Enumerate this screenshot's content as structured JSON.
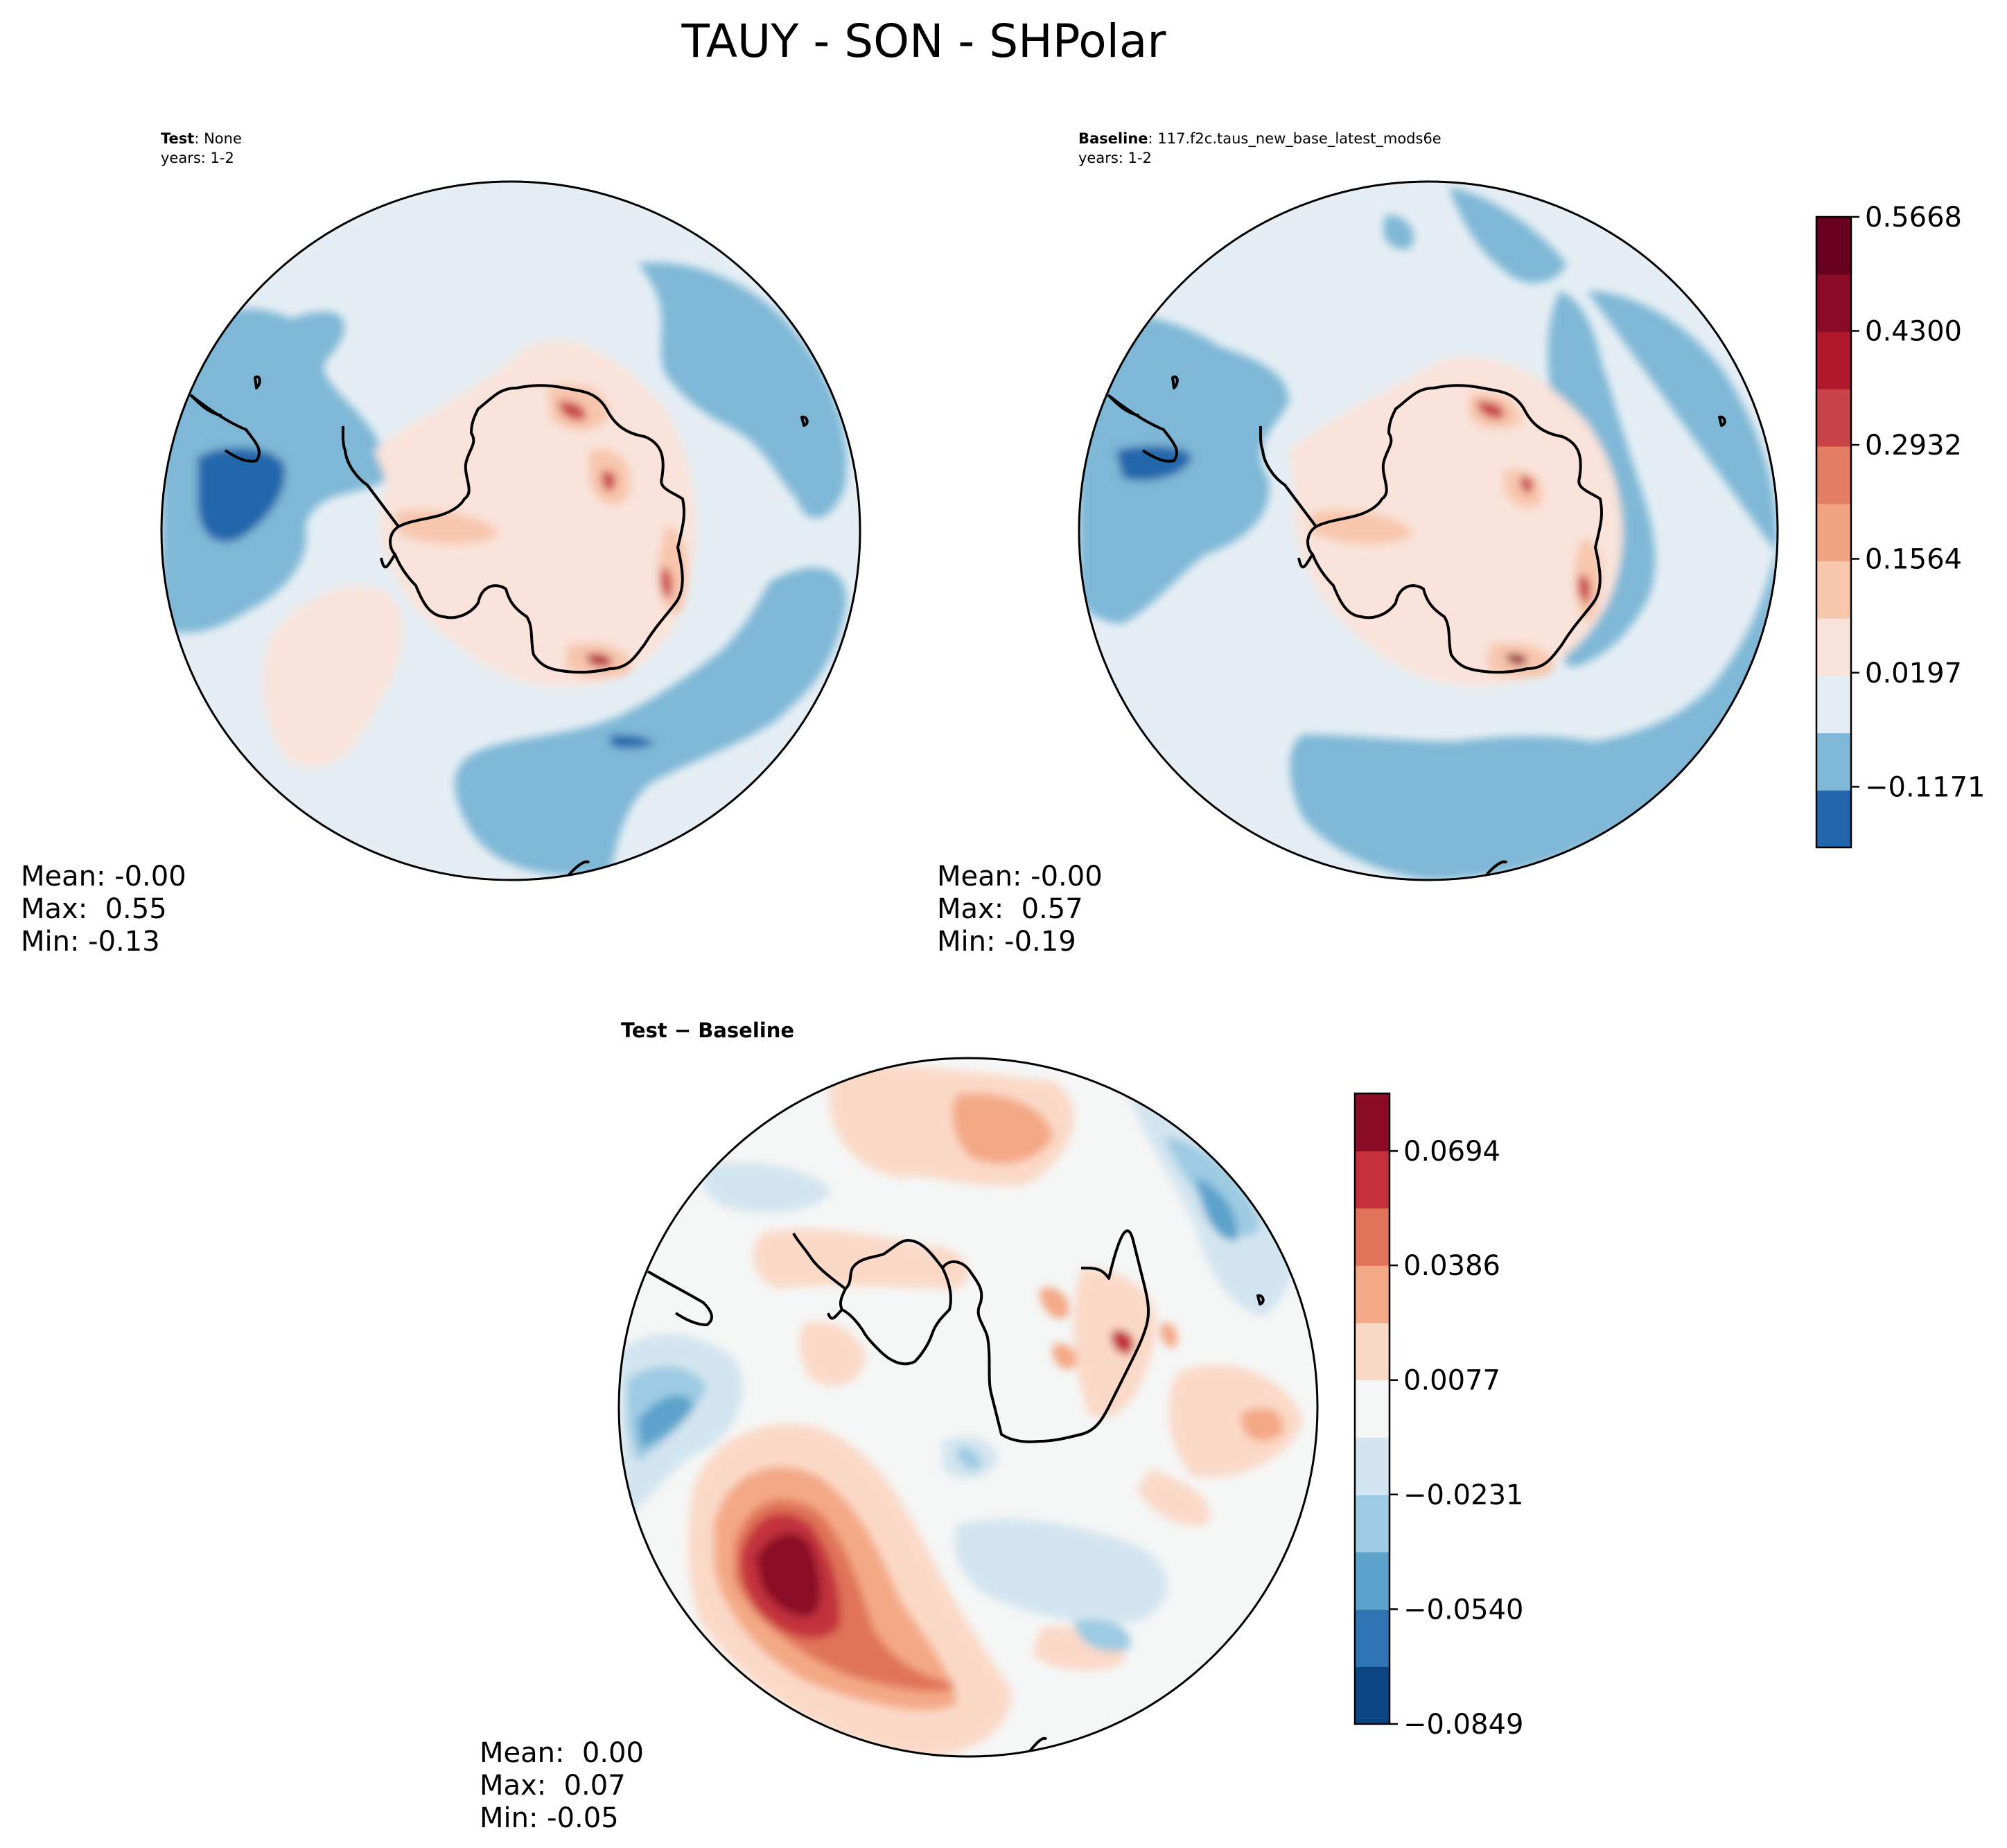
{
  "figure": {
    "title": "TAUY - SON - SHPolar"
  },
  "chart_data": [
    {
      "type": "heatmap",
      "projection": "south-polar-stereographic",
      "panel": "test",
      "label_bold": "Test",
      "label_value": "None",
      "years": "years: 1-2",
      "stats": {
        "mean": "Mean: -0.00",
        "max": "Max:  0.55",
        "min": "Min: -0.13"
      },
      "colormap": "RdBu_r"
    },
    {
      "type": "heatmap",
      "projection": "south-polar-stereographic",
      "panel": "baseline",
      "label_bold": "Baseline",
      "label_value": "117.f2c.taus_new_base_latest_mods6e",
      "years": "years: 1-2",
      "stats": {
        "mean": "Mean: -0.00",
        "max": "Max:  0.57",
        "min": "Min: -0.19"
      },
      "colormap": "RdBu_r",
      "colorbar": {
        "range": [
          -0.19,
          0.5668
        ],
        "ticks": [
          0.5668,
          0.43,
          0.2932,
          0.1564,
          0.0197,
          -0.1171
        ],
        "tick_labels": [
          "0.5668",
          "0.4300",
          "0.2932",
          "0.1564",
          "0.0197",
          "−0.1171"
        ],
        "colors": [
          "#2166ac",
          "#7fb8d7",
          "#e5eef4",
          "#f9e3da",
          "#f8c6ad",
          "#f2a482",
          "#e27e64",
          "#c9444a",
          "#b2182b",
          "#8a0b26",
          "#67001f"
        ]
      }
    },
    {
      "type": "heatmap",
      "projection": "south-polar-stereographic",
      "panel": "difference",
      "label_bold": "Test − Baseline",
      "stats": {
        "mean": "Mean:  0.00",
        "max": "Max:  0.07",
        "min": "Min: -0.05"
      },
      "colormap": "RdBu_r",
      "colorbar": {
        "range": [
          -0.0849,
          0.0849
        ],
        "ticks": [
          0.0694,
          0.0386,
          0.0077,
          -0.0231,
          -0.054,
          -0.0849
        ],
        "tick_labels": [
          "0.0694",
          "0.0386",
          "0.0077",
          "−0.0231",
          "−0.0540",
          "−0.0849"
        ],
        "colors": [
          "#0c4584",
          "#2d75b4",
          "#5ba2cc",
          "#9dcbe2",
          "#d3e5f0",
          "#f5f6f6",
          "#fbd9c7",
          "#f4a986",
          "#e07359",
          "#c3303c",
          "#8b0c25"
        ]
      }
    }
  ]
}
